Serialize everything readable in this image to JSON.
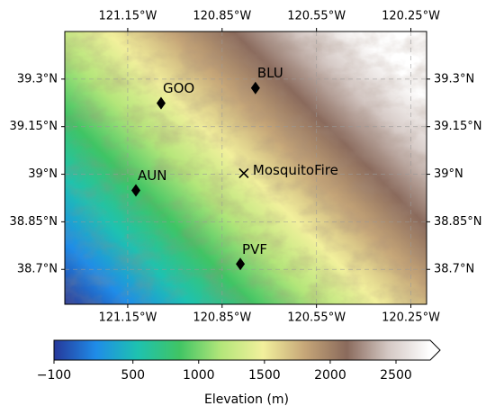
{
  "map": {
    "xlim": [
      -121.35,
      -120.2
    ],
    "ylim": [
      38.59,
      39.45
    ],
    "xticks": [
      {
        "value": -121.15,
        "label": "121.15°W"
      },
      {
        "value": -120.85,
        "label": "120.85°W"
      },
      {
        "value": -120.55,
        "label": "120.55°W"
      },
      {
        "value": -120.25,
        "label": "120.25°W"
      }
    ],
    "yticks": [
      {
        "value": 39.3,
        "label": "39.3°N"
      },
      {
        "value": 39.15,
        "label": "39.15°N"
      },
      {
        "value": 39,
        "label": "39°N"
      },
      {
        "value": 38.85,
        "label": "38.85°N"
      },
      {
        "value": 38.7,
        "label": "38.7°N"
      }
    ],
    "grid": true,
    "stations": [
      {
        "name": "GOO",
        "lon": -121.044,
        "lat": 39.224,
        "marker": "diamond"
      },
      {
        "name": "BLU",
        "lon": -120.744,
        "lat": 39.272,
        "marker": "diamond"
      },
      {
        "name": "AUN",
        "lon": -121.124,
        "lat": 38.949,
        "marker": "diamond"
      },
      {
        "name": "MosquitoFire",
        "lon": -120.781,
        "lat": 39.003,
        "marker": "x"
      },
      {
        "name": "PVF",
        "lon": -120.792,
        "lat": 38.717,
        "marker": "diamond"
      }
    ],
    "colorbar": {
      "label": "Elevation (m)",
      "clim": [
        -100,
        2760
      ],
      "ticks": [
        {
          "value": -100,
          "label": "−100"
        },
        500,
        1000,
        1500,
        2000,
        2500
      ],
      "colormap": [
        "#26389a",
        "#1f8ce8",
        "#1ec2b0",
        "#40c464",
        "#b4e67a",
        "#f2f09c",
        "#c6a678",
        "#8a6a5c",
        "#d4c8c4",
        "#ffffff"
      ]
    }
  }
}
